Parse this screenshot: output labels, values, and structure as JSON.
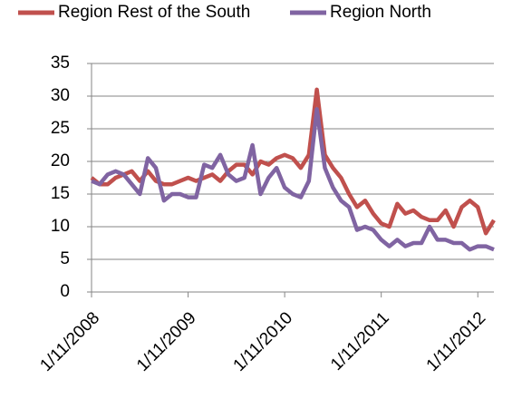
{
  "chart_data": {
    "type": "line",
    "categories": [
      "1/11/2008",
      null,
      null,
      null,
      null,
      null,
      null,
      null,
      null,
      null,
      null,
      null,
      "1/11/2009",
      null,
      null,
      null,
      null,
      null,
      null,
      null,
      null,
      null,
      null,
      null,
      "1/11/2010",
      null,
      null,
      null,
      null,
      null,
      null,
      null,
      null,
      null,
      null,
      null,
      "1/11/2011",
      null,
      null,
      null,
      null,
      null,
      null,
      null,
      null,
      null,
      null,
      null,
      "1/11/2012",
      null,
      null
    ],
    "series": [
      {
        "name": "Region Rest of the South",
        "color": "#c0504d",
        "values": [
          17.5,
          16.5,
          16.5,
          17.5,
          18,
          18.5,
          17,
          18.5,
          17,
          16.5,
          16.5,
          17,
          17.5,
          17,
          17.5,
          18,
          17,
          18.5,
          19.5,
          19.5,
          18,
          20,
          19.5,
          20.5,
          21,
          20.5,
          19,
          21,
          31,
          21,
          19,
          17.5,
          15,
          13,
          14,
          12,
          10.5,
          10,
          13.5,
          12,
          12.5,
          11.5,
          11,
          11,
          12.5,
          10,
          13,
          14,
          13,
          9,
          11
        ]
      },
      {
        "name": "Region North",
        "color": "#8064a2",
        "values": [
          17,
          16.5,
          18,
          18.5,
          18,
          16.5,
          15,
          20.5,
          19,
          14,
          15,
          15,
          14.5,
          14.5,
          19.5,
          19,
          21,
          18,
          17,
          17.5,
          22.5,
          15,
          17.5,
          19,
          16,
          15,
          14.5,
          17,
          28,
          19,
          16,
          14,
          13,
          9.5,
          10,
          9.5,
          8,
          7,
          8,
          7,
          7.5,
          7.5,
          10,
          8,
          8,
          7.5,
          7.5,
          6.5,
          7,
          7,
          6.5
        ]
      }
    ],
    "ylim": [
      0,
      35
    ],
    "yticks": [
      0,
      5,
      10,
      15,
      20,
      25,
      30,
      35
    ],
    "grid": true,
    "legend": "top"
  }
}
